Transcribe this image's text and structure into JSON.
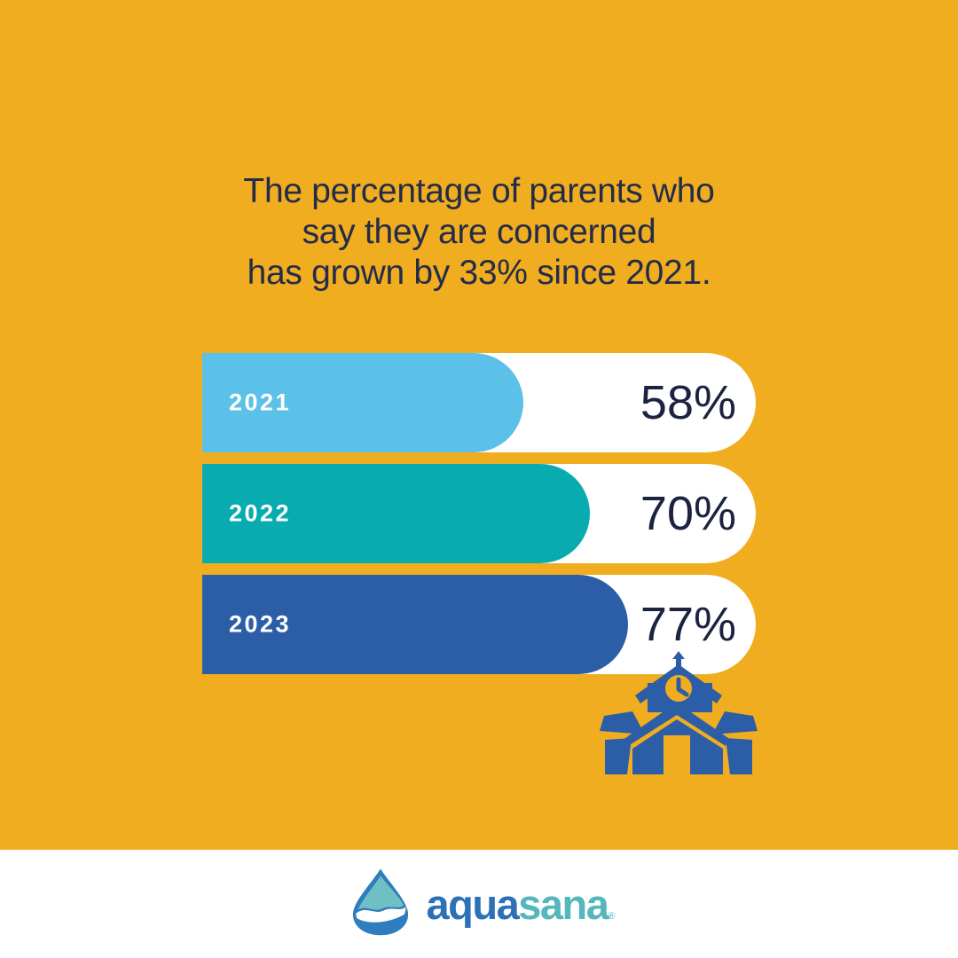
{
  "title": {
    "full_text": "The percentage of parents who say they are concerned has grown by 33% since 2021.",
    "lines": [
      "The percentage of parents who",
      "say they are concerned",
      "has grown by 33% since 2021."
    ]
  },
  "chart_data": {
    "type": "bar",
    "orientation": "horizontal",
    "categories": [
      "2021",
      "2022",
      "2023"
    ],
    "values": [
      58,
      70,
      77
    ],
    "value_labels": [
      "58%",
      "70%",
      "77%"
    ],
    "unit": "%",
    "xlim": [
      0,
      100
    ],
    "bar_colors": [
      "#5BC1E8",
      "#08ACB0",
      "#2C5EA8"
    ],
    "track_color": "#FFFFFF",
    "label_color": "#FFFFFF",
    "value_color": "#1B2340",
    "grid": false,
    "legend": false
  },
  "icons": {
    "school_icon": "schoolhouse with clock tower",
    "school_icon_color": "#2C5EA8",
    "clock_face_color": "#F0AD1F",
    "water_drop_icon": "aquasana water drop"
  },
  "footer": {
    "brand_first": "aqua",
    "brand_second": "sana",
    "registered_mark": "®"
  },
  "colors": {
    "background": "#F0AD1F",
    "title_text": "#252C49",
    "footer_background": "#FFFFFF",
    "brand_blue": "#2C70B6",
    "brand_teal": "#55B6BB"
  }
}
